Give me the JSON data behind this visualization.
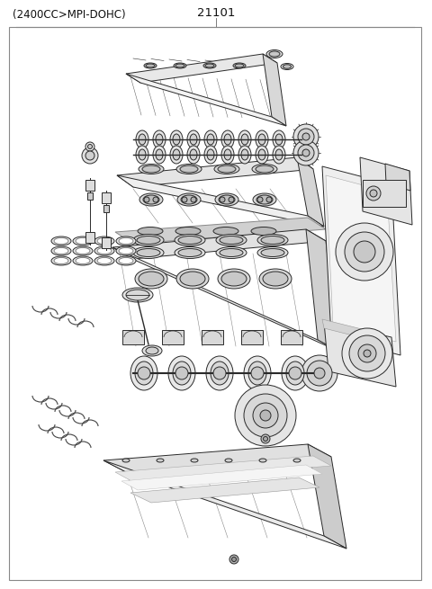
{
  "title_left": "(2400CC>MPI-DOHC)",
  "part_number": "21101",
  "border_color": "#999999",
  "bg_color": "#ffffff",
  "text_color": "#111111",
  "title_fontsize": 8.5,
  "part_fontsize": 9.5,
  "fig_width": 4.8,
  "fig_height": 6.55,
  "dpi": 100,
  "lc": "#2a2a2a",
  "lw": 0.7
}
